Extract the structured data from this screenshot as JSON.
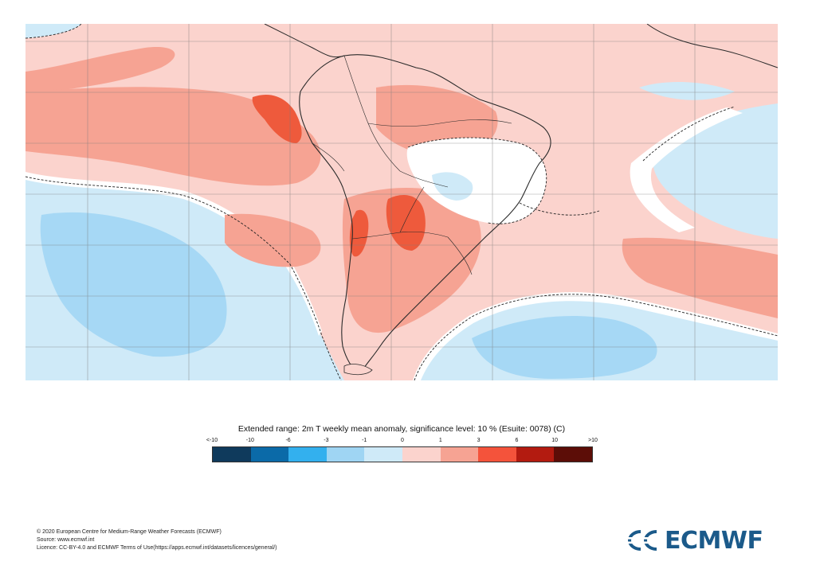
{
  "map": {
    "region": "South America",
    "colors": {
      "ocean_cold": "#cfeaf8",
      "cold_mid": "#a6d8f5",
      "near_zero": "#ffffff",
      "warm_light": "#fbd3cd",
      "warm_mid": "#f6a393",
      "warm_strong": "#ee5a3c",
      "coast_line": "#2a2a2a",
      "grid_line": "#7a7a7a"
    }
  },
  "legend": {
    "title": "Extended range: 2m T weekly mean anomaly, significance level: 10 % (Esuite: 0078) (C)",
    "ticks": [
      "<-10",
      "-10",
      "-6",
      "-3",
      "-1",
      "0",
      "1",
      "3",
      "6",
      "10",
      ">10"
    ],
    "swatch_colors": [
      "#0f3a5c",
      "#0b6aa8",
      "#33b0ee",
      "#9fd5f3",
      "#cfeaf8",
      "#fbd3cd",
      "#f6a393",
      "#f4533b",
      "#b31b10",
      "#5c0d07"
    ]
  },
  "footer": {
    "copyright": "© 2020 European Centre for Medium-Range Weather Forecasts (ECMWF)",
    "source": "Source: www.ecmwf.int",
    "licence": "Licence: CC-BY-4.0 and ECMWF Terms of Use(https://apps.ecmwf.int/datasets/licences/general/)"
  },
  "logo": {
    "text": "ECMWF",
    "icon": "ecmwf-logo-icon",
    "color": "#1b5a8a"
  }
}
